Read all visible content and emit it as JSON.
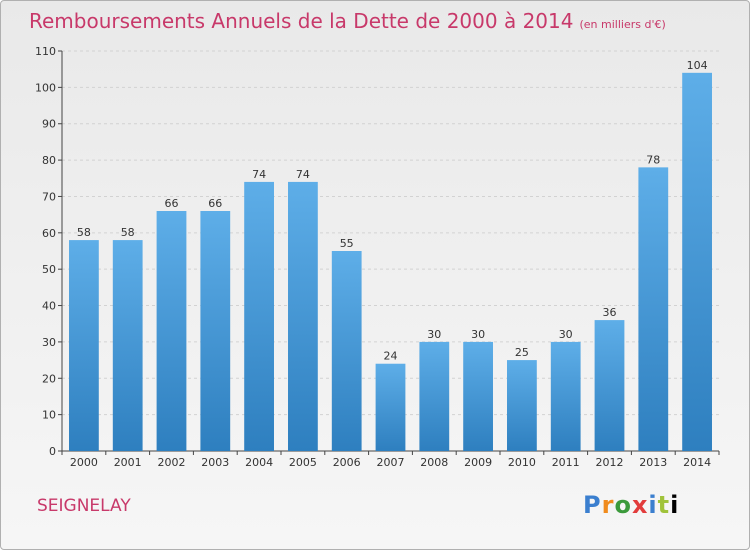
{
  "title": "Remboursements Annuels de la Dette de 2000 à 2014",
  "subtitle": "(en milliers d'€)",
  "location": "SEIGNELAY",
  "logo_text": "Proxiti",
  "colors": {
    "title": "#c8396a",
    "bar_top": "#5eaee8",
    "bar_bottom": "#2e7fbf"
  },
  "chart_data": {
    "type": "bar",
    "categories": [
      "2000",
      "2001",
      "2002",
      "2003",
      "2004",
      "2005",
      "2006",
      "2007",
      "2008",
      "2009",
      "2010",
      "2011",
      "2012",
      "2013",
      "2014"
    ],
    "values": [
      58,
      58,
      66,
      66,
      74,
      74,
      55,
      24,
      30,
      30,
      25,
      30,
      36,
      78,
      104
    ],
    "data_labels": [
      "58",
      "58",
      "66",
      "66",
      "74",
      "74",
      "55",
      "24",
      "30",
      "30",
      "25",
      "30",
      "36",
      "78",
      "104"
    ],
    "title": "Remboursements Annuels de la Dette de 2000 à 2014",
    "ylim": [
      0,
      110
    ],
    "yticks": [
      0,
      10,
      20,
      30,
      40,
      50,
      60,
      70,
      80,
      90,
      100,
      110
    ],
    "grid": true
  }
}
